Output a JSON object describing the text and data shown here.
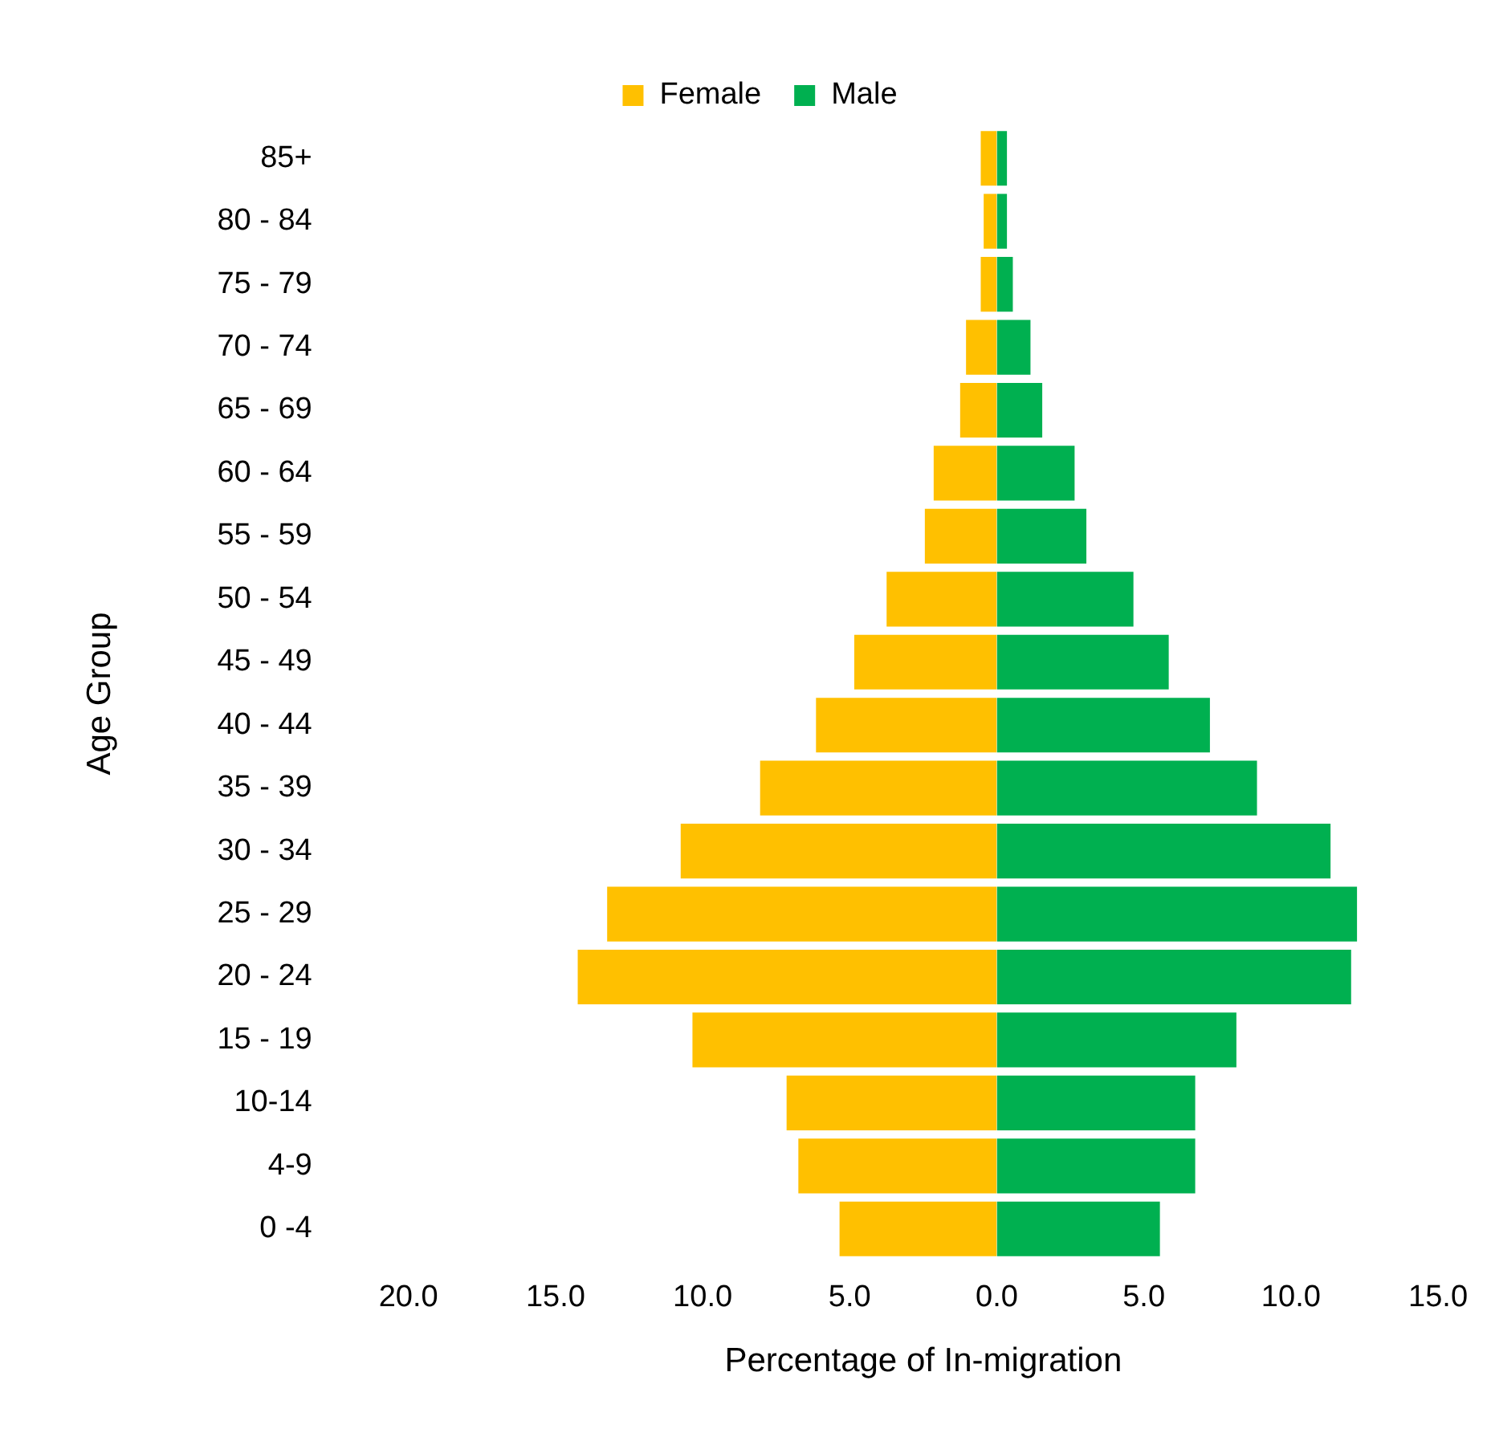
{
  "chart_data": {
    "type": "bar",
    "orientation": "horizontal",
    "stacked": true,
    "xlabel": "Percentage of In-migration",
    "ylabel": "Age Group",
    "categories": [
      "85+",
      "80 - 84",
      "75 - 79",
      "70 - 74",
      "65 - 69",
      "60 - 64",
      "55 - 59",
      "50 - 54",
      "45 - 49",
      "40 - 44",
      "35 - 39",
      "30 - 34",
      "25 - 29",
      "20 - 24",
      "15 - 19",
      "10-14",
      "4-9",
      "0 -4"
    ],
    "series": [
      {
        "name": "Female",
        "color": "#ffc000",
        "values": [
          -0.6,
          -0.5,
          -0.6,
          -1.1,
          -1.3,
          -2.2,
          -2.5,
          -3.8,
          -4.9,
          -6.2,
          -8.1,
          -10.8,
          -13.3,
          -14.3,
          -10.4,
          -7.2,
          -6.8,
          -5.4
        ]
      },
      {
        "name": "Male",
        "color": "#00b050",
        "values": [
          0.4,
          0.4,
          0.6,
          1.2,
          1.6,
          2.7,
          3.1,
          4.7,
          5.9,
          7.3,
          8.9,
          11.4,
          12.3,
          12.1,
          8.2,
          6.8,
          6.8,
          5.6
        ]
      }
    ],
    "xlim": [
      -20,
      15
    ],
    "xticks": [
      {
        "value": -20,
        "label": "20.0"
      },
      {
        "value": -15,
        "label": "15.0"
      },
      {
        "value": -10,
        "label": "10.0"
      },
      {
        "value": -5,
        "label": "5.0"
      },
      {
        "value": 0,
        "label": "0.0"
      },
      {
        "value": 5,
        "label": "5.0"
      },
      {
        "value": 10,
        "label": "10.0"
      },
      {
        "value": 15,
        "label": "15.0"
      }
    ],
    "grid": false,
    "legend": "top"
  }
}
